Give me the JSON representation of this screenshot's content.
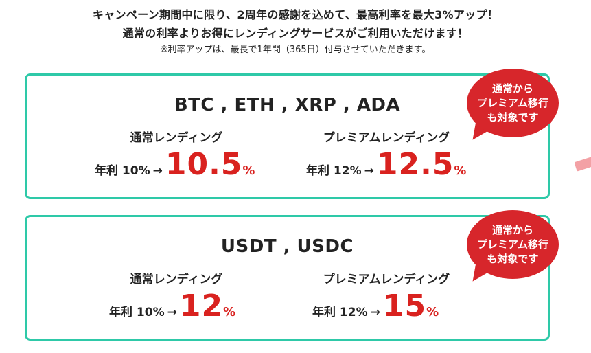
{
  "intro": {
    "line1": "キャンペーン期間中に限り、2周年の感謝を込めて、最高利率を最大3%アップ！",
    "line2": "通常の利率よりお得にレンディングサービスがご利用いただけます！",
    "note": "※利率アップは、最長で1年間（365日）付与させていただきます。"
  },
  "cards": [
    {
      "title": "BTC , ETH , XRP , ADA",
      "normal_label": "通常レンディング",
      "premium_label": "プレミアムレンディング",
      "normal_rate_prefix": "年利 10%",
      "normal_rate_new": "10.5",
      "premium_rate_prefix": "年利 12%",
      "premium_rate_new": "12.5",
      "percent_sign": "%",
      "arrow": "→",
      "badge": [
        "通常から",
        "プレミアム移行",
        "も対象です"
      ]
    },
    {
      "title": "USDT , USDC",
      "normal_label": "通常レンディング",
      "premium_label": "プレミアムレンディング",
      "normal_rate_prefix": "年利 10%",
      "normal_rate_new": "12",
      "premium_rate_prefix": "年利 12%",
      "premium_rate_new": "15",
      "percent_sign": "%",
      "arrow": "→",
      "badge": [
        "通常から",
        "プレミアム移行",
        "も対象です"
      ]
    }
  ],
  "colors": {
    "accent_red": "#d9221f",
    "card_border": "#2ec9a8",
    "badge_bg": "#d7262b"
  }
}
